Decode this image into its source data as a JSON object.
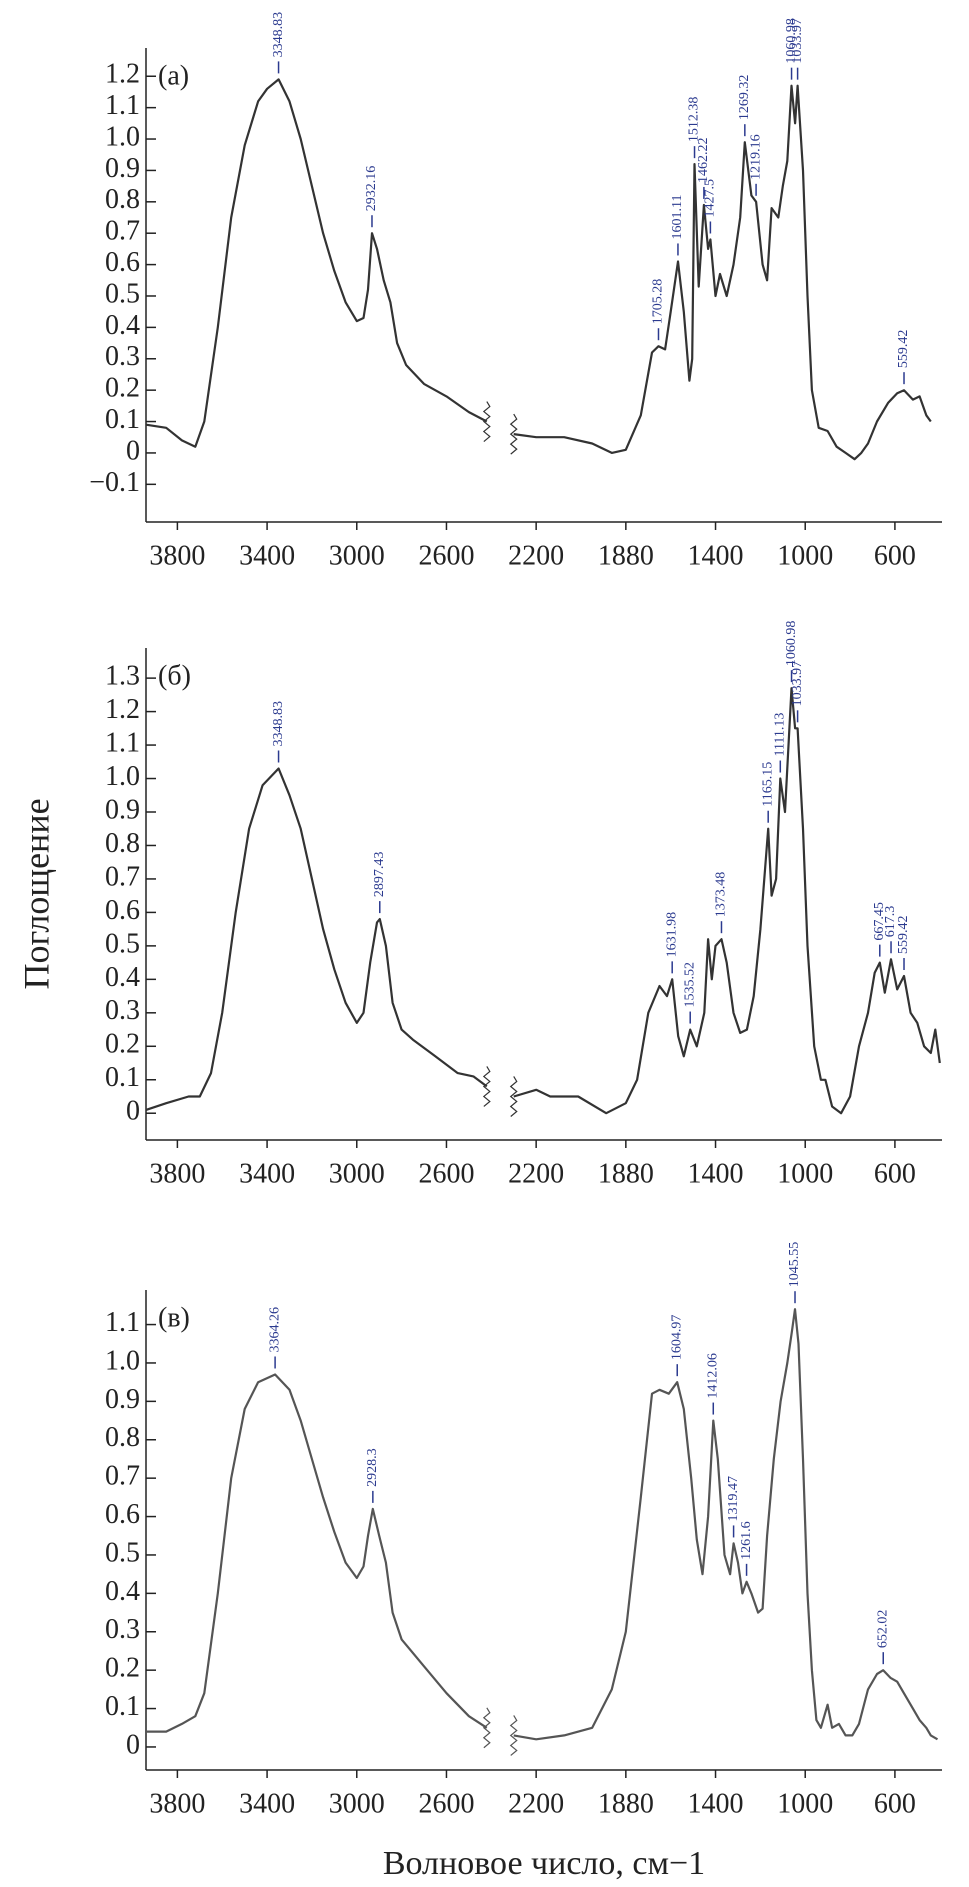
{
  "chart_data": [
    {
      "type": "line",
      "panel_label": "(а)",
      "color": "#333333",
      "peak_color": "#2b3a8f",
      "xlim": [
        3940,
        390
      ],
      "xticks": [
        3800,
        3400,
        3000,
        2600,
        2200,
        1880,
        1400,
        1000,
        600
      ],
      "ylim": [
        -0.22,
        1.29
      ],
      "yticks": [
        {
          "value": -0.1,
          "label": "−0.1"
        },
        0,
        0.1,
        0.2,
        0.3,
        0.4,
        0.5,
        0.6,
        0.7,
        0.8,
        0.9,
        {
          "value": 1,
          "label": "1.0"
        },
        1.1,
        1.2
      ],
      "x": [
        3940,
        3850,
        3780,
        3720,
        3680,
        3620,
        3560,
        3500,
        3440,
        3400,
        3348.83,
        3300,
        3250,
        3200,
        3150,
        3100,
        3050,
        3000,
        2970,
        2950,
        2932.16,
        2910,
        2880,
        2850,
        2820,
        2780,
        2700,
        2600,
        2500,
        2420,
        2350,
        2300,
        2200,
        2100,
        2000,
        1930,
        1880,
        1800,
        1740,
        1705.28,
        1670,
        1640,
        1601.11,
        1570,
        1540,
        1525,
        1512.38,
        1490,
        1462.22,
        1440,
        1427.5,
        1400,
        1380,
        1350,
        1320,
        1290,
        1269.32,
        1240,
        1219.16,
        1190,
        1170,
        1150,
        1120,
        1100,
        1080,
        1060.98,
        1045,
        1033.97,
        1010,
        990,
        970,
        940,
        900,
        860,
        820,
        780,
        750,
        720,
        680,
        630,
        590,
        559.42,
        520,
        490,
        460,
        440
      ],
      "values": [
        0.09,
        0.08,
        0.04,
        0.02,
        0.1,
        0.4,
        0.75,
        0.98,
        1.12,
        1.16,
        1.19,
        1.12,
        1.0,
        0.85,
        0.7,
        0.58,
        0.48,
        0.42,
        0.43,
        0.52,
        0.7,
        0.65,
        0.55,
        0.48,
        0.35,
        0.28,
        0.22,
        0.18,
        0.13,
        0.1,
        null,
        0.06,
        0.05,
        0.05,
        0.03,
        0.0,
        0.01,
        0.12,
        0.32,
        0.34,
        0.33,
        0.45,
        0.61,
        0.45,
        0.23,
        0.3,
        0.92,
        0.53,
        0.79,
        0.65,
        0.68,
        0.5,
        0.57,
        0.5,
        0.6,
        0.75,
        0.99,
        0.82,
        0.8,
        0.6,
        0.55,
        0.78,
        0.75,
        0.85,
        0.93,
        1.17,
        1.05,
        1.17,
        0.9,
        0.5,
        0.2,
        0.08,
        0.07,
        0.02,
        0.0,
        -0.02,
        0.0,
        0.03,
        0.1,
        0.16,
        0.19,
        0.2,
        0.17,
        0.18,
        0.12,
        0.1
      ],
      "peaks": [
        3348.83,
        2932.16,
        1705.28,
        1601.11,
        1512.38,
        1462.22,
        1427.5,
        1269.32,
        1219.16,
        1060.98,
        1033.97,
        559.42
      ]
    },
    {
      "type": "line",
      "panel_label": "(б)",
      "y_label": "Поглощение",
      "color": "#333333",
      "peak_color": "#2b3a8f",
      "xlim": [
        3940,
        390
      ],
      "xticks": [
        3800,
        3400,
        3000,
        2600,
        2200,
        1880,
        1400,
        1000,
        600
      ],
      "ylim": [
        -0.08,
        1.39
      ],
      "yticks": [
        0,
        0.1,
        0.2,
        0.3,
        0.4,
        0.5,
        0.6,
        0.7,
        0.8,
        0.9,
        {
          "value": 1,
          "label": "1.0"
        },
        1.1,
        1.2,
        1.3
      ],
      "x": [
        3940,
        3850,
        3750,
        3700,
        3650,
        3600,
        3540,
        3480,
        3420,
        3348.83,
        3300,
        3250,
        3200,
        3150,
        3100,
        3050,
        3000,
        2970,
        2940,
        2910,
        2897.43,
        2870,
        2840,
        2800,
        2750,
        2650,
        2550,
        2480,
        2420,
        2350,
        2300,
        2200,
        2150,
        2050,
        1950,
        1880,
        1820,
        1760,
        1700,
        1660,
        1631.98,
        1600,
        1570,
        1535.52,
        1500,
        1460,
        1440,
        1420,
        1400,
        1373.48,
        1350,
        1320,
        1290,
        1260,
        1230,
        1200,
        1165.15,
        1150,
        1130,
        1111.13,
        1090,
        1060.98,
        1045,
        1033.97,
        1010,
        990,
        960,
        930,
        910,
        880,
        840,
        800,
        760,
        720,
        690,
        667.45,
        645,
        617.3,
        590,
        559.42,
        530,
        500,
        470,
        440,
        420,
        400
      ],
      "values": [
        0.01,
        0.03,
        0.05,
        0.05,
        0.12,
        0.3,
        0.6,
        0.85,
        0.98,
        1.03,
        0.95,
        0.85,
        0.7,
        0.55,
        0.43,
        0.33,
        0.27,
        0.3,
        0.45,
        0.57,
        0.58,
        0.5,
        0.33,
        0.25,
        0.22,
        0.17,
        0.12,
        0.11,
        0.08,
        null,
        0.05,
        0.07,
        0.05,
        0.05,
        0.0,
        0.03,
        0.1,
        0.3,
        0.38,
        0.35,
        0.4,
        0.23,
        0.17,
        0.25,
        0.2,
        0.3,
        0.52,
        0.4,
        0.5,
        0.52,
        0.45,
        0.3,
        0.24,
        0.25,
        0.35,
        0.55,
        0.85,
        0.65,
        0.7,
        1.0,
        0.9,
        1.27,
        1.15,
        1.15,
        0.85,
        0.5,
        0.2,
        0.1,
        0.1,
        0.02,
        0.0,
        0.05,
        0.2,
        0.3,
        0.42,
        0.45,
        0.36,
        0.46,
        0.37,
        0.41,
        0.3,
        0.27,
        0.2,
        0.18,
        0.25,
        0.15
      ],
      "peaks": [
        3348.83,
        2897.43,
        1631.98,
        1535.52,
        1373.48,
        1165.15,
        1111.13,
        1060.98,
        1033.97,
        667.45,
        617.3,
        559.42
      ]
    },
    {
      "type": "line",
      "panel_label": "(в)",
      "x_label": "Волновое число, см−1",
      "color": "#555555",
      "peak_color": "#2b3a8f",
      "xlim": [
        3940,
        390
      ],
      "xticks": [
        3800,
        3400,
        3000,
        2600,
        2200,
        1880,
        1400,
        1000,
        600
      ],
      "ylim": [
        -0.06,
        1.19
      ],
      "yticks": [
        0,
        0.1,
        0.2,
        0.3,
        0.4,
        0.5,
        0.6,
        0.7,
        0.8,
        0.9,
        {
          "value": 1,
          "label": "1.0"
        },
        1.1
      ],
      "x": [
        3940,
        3850,
        3780,
        3720,
        3680,
        3620,
        3560,
        3500,
        3440,
        3364.26,
        3300,
        3250,
        3200,
        3150,
        3100,
        3050,
        3000,
        2970,
        2950,
        2928.3,
        2900,
        2870,
        2840,
        2800,
        2700,
        2600,
        2500,
        2420,
        2350,
        2300,
        2200,
        2100,
        2000,
        1930,
        1880,
        1800,
        1740,
        1700,
        1650,
        1604.97,
        1570,
        1530,
        1500,
        1470,
        1440,
        1412.06,
        1390,
        1360,
        1335,
        1319.47,
        1300,
        1280,
        1261.6,
        1240,
        1210,
        1190,
        1170,
        1140,
        1110,
        1080,
        1060,
        1045.55,
        1030,
        1010,
        990,
        970,
        950,
        930,
        900,
        880,
        850,
        820,
        790,
        760,
        720,
        680,
        652.02,
        620,
        590,
        560,
        520,
        490,
        460,
        440,
        410
      ],
      "values": [
        0.04,
        0.04,
        0.06,
        0.08,
        0.14,
        0.4,
        0.7,
        0.88,
        0.95,
        0.97,
        0.93,
        0.85,
        0.75,
        0.65,
        0.56,
        0.48,
        0.44,
        0.47,
        0.55,
        0.62,
        0.55,
        0.48,
        0.35,
        0.28,
        0.21,
        0.14,
        0.08,
        0.05,
        null,
        0.03,
        0.02,
        0.03,
        0.05,
        0.15,
        0.3,
        0.65,
        0.92,
        0.93,
        0.92,
        0.95,
        0.88,
        0.7,
        0.54,
        0.45,
        0.6,
        0.85,
        0.75,
        0.5,
        0.45,
        0.53,
        0.48,
        0.4,
        0.43,
        0.4,
        0.35,
        0.36,
        0.55,
        0.75,
        0.9,
        1.0,
        1.08,
        1.14,
        1.05,
        0.75,
        0.4,
        0.2,
        0.07,
        0.05,
        0.11,
        0.05,
        0.06,
        0.03,
        0.03,
        0.06,
        0.15,
        0.19,
        0.2,
        0.18,
        0.17,
        0.14,
        0.1,
        0.07,
        0.05,
        0.03,
        0.02
      ],
      "peaks": [
        3364.26,
        2928.3,
        1604.97,
        1412.06,
        1319.47,
        1261.6,
        1045.55,
        652.02
      ]
    }
  ]
}
